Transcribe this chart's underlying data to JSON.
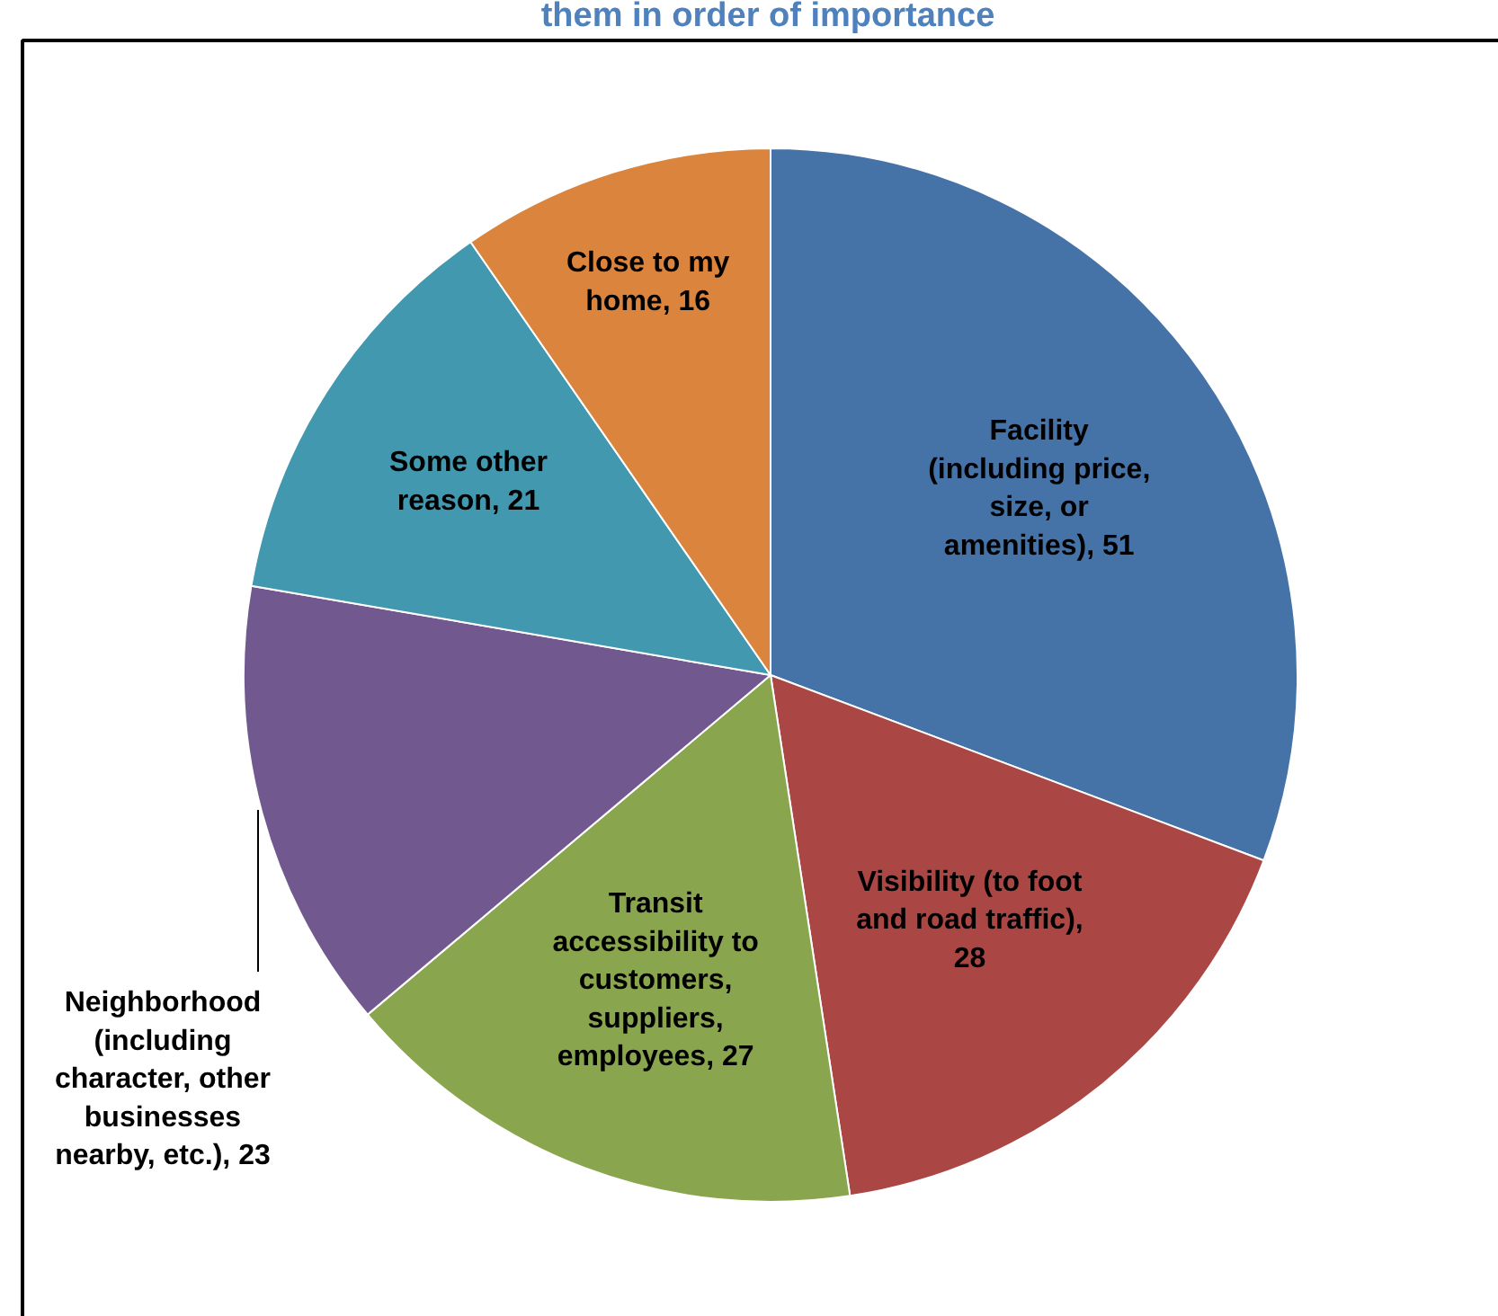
{
  "chart_data": {
    "type": "pie",
    "title": "them in order of importance",
    "categories": [
      "Facility\n(including price,\nsize, or\namenities)",
      "Visibility (to foot\nand road traffic)",
      "Transit\naccessibility to\ncustomers,\nsuppliers,\nemployees",
      "Neighborhood\n(including\ncharacter, other\nbusinesses\nnearby, etc.)",
      "Some other\nreason",
      "Close to my\nhome"
    ],
    "values": [
      51,
      28,
      27,
      23,
      21,
      16
    ],
    "colors": [
      "#4572a7",
      "#aa4643",
      "#89a54e",
      "#71588f",
      "#4198af",
      "#db843d"
    ],
    "value_labels": [
      ", 51",
      ",\n28",
      ", 27",
      ", 23",
      ", 21",
      ", 16"
    ]
  }
}
